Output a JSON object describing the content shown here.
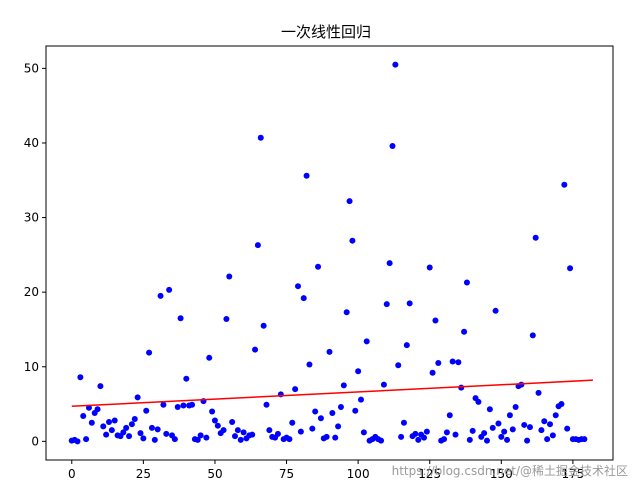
{
  "chart_data": {
    "type": "scatter",
    "title": "一次线性回归",
    "xlabel": "",
    "ylabel": "",
    "xlim": [
      -9,
      189
    ],
    "ylim": [
      -2.5,
      53
    ],
    "xticks": [
      0,
      25,
      50,
      75,
      100,
      125,
      150,
      175
    ],
    "yticks": [
      0,
      10,
      20,
      30,
      40,
      50
    ],
    "grid": false,
    "legend": false,
    "colors": {
      "points": "#0000ff",
      "line": "#ff0000"
    },
    "points": {
      "x": [
        0,
        1,
        2,
        3,
        4,
        5,
        6,
        7,
        8,
        9,
        10,
        11,
        12,
        13,
        14,
        15,
        16,
        17,
        18,
        19,
        20,
        21,
        22,
        23,
        24,
        25,
        26,
        27,
        28,
        29,
        30,
        31,
        32,
        33,
        34,
        35,
        36,
        37,
        38,
        39,
        40,
        41,
        42,
        43,
        44,
        45,
        46,
        47,
        48,
        49,
        50,
        51,
        52,
        53,
        54,
        55,
        56,
        57,
        58,
        59,
        60,
        61,
        62,
        63,
        64,
        65,
        66,
        67,
        68,
        69,
        70,
        71,
        72,
        73,
        74,
        75,
        76,
        77,
        78,
        79,
        80,
        81,
        82,
        83,
        84,
        85,
        86,
        87,
        88,
        89,
        90,
        91,
        92,
        93,
        94,
        95,
        96,
        97,
        98,
        99,
        100,
        101,
        102,
        103,
        104,
        105,
        106,
        107,
        108,
        109,
        110,
        111,
        112,
        113,
        114,
        115,
        116,
        117,
        118,
        119,
        120,
        121,
        122,
        123,
        124,
        125,
        126,
        127,
        128,
        129,
        130,
        131,
        132,
        133,
        134,
        135,
        136,
        137,
        138,
        139,
        140,
        141,
        142,
        143,
        144,
        145,
        146,
        147,
        148,
        149,
        150,
        151,
        152,
        153,
        154,
        155,
        156,
        157,
        158,
        159,
        160,
        161,
        162,
        163,
        164,
        165,
        166,
        167,
        168,
        169,
        170,
        171,
        172,
        173,
        174,
        175,
        176,
        177,
        178,
        179
      ],
      "y": [
        0.1,
        0.2,
        0,
        8.6,
        3.4,
        0.3,
        4.5,
        2.5,
        3.8,
        4.3,
        7.4,
        2.0,
        0.9,
        2.6,
        1.5,
        2.8,
        0.8,
        0.7,
        1.2,
        1.8,
        0.7,
        2.3,
        3.0,
        5.9,
        1.1,
        0.4,
        4.1,
        11.9,
        1.8,
        0.2,
        1.6,
        19.5,
        4.9,
        1.0,
        20.3,
        0.8,
        0.3,
        4.6,
        16.5,
        4.8,
        8.4,
        4.8,
        4.9,
        0.3,
        0.2,
        0.8,
        5.4,
        0.5,
        11.2,
        4.0,
        2.8,
        2.1,
        1.1,
        1.5,
        16.4,
        22.1,
        2.6,
        0.7,
        1.5,
        0.2,
        1.2,
        0.4,
        0.8,
        0.9,
        12.3,
        26.3,
        40.7,
        15.5,
        4.9,
        1.5,
        0.6,
        0.5,
        1.0,
        6.3,
        0.3,
        0.5,
        0.3,
        2.5,
        7.0,
        20.8,
        1.3,
        19.2,
        35.6,
        10.3,
        1.7,
        4.0,
        23.4,
        3.1,
        0.4,
        0.6,
        12.0,
        3.8,
        0.5,
        2.0,
        4.6,
        7.5,
        17.3,
        32.2,
        26.9,
        4.1,
        9.4,
        5.6,
        1.2,
        13.4,
        0.1,
        0.3,
        0.6,
        0.3,
        0.1,
        7.6,
        18.4,
        23.9,
        39.6,
        50.5,
        10.2,
        0.6,
        2.5,
        12.9,
        18.5,
        0.7,
        1.0,
        0.2,
        0.9,
        0.5,
        1.3,
        23.3,
        9.2,
        16.2,
        10.5,
        0.1,
        0.3,
        1.2,
        3.5,
        10.7,
        0.9,
        10.6,
        7.2,
        14.7,
        21.3,
        0.2,
        1.4,
        5.8,
        5.3,
        0.6,
        1.1,
        0.1,
        4.3,
        1.8,
        17.5,
        2.4,
        0.6,
        1.3,
        0.2,
        3.5,
        1.6,
        4.6,
        7.4,
        7.6,
        2.2,
        0.1,
        1.9,
        14.2,
        27.3,
        6.5,
        1.5,
        2.7,
        0.3,
        2.3,
        0.8,
        3.5,
        4.7,
        5.0,
        34.4,
        1.7,
        23.2,
        0.3,
        0.3,
        0.2,
        0.3,
        0.3
      ]
    },
    "regression_line": {
      "x": [
        0,
        182
      ],
      "y": [
        4.7,
        8.2
      ]
    }
  },
  "watermark": "https://blog.csdn.net/@稀土掘金技术社区"
}
